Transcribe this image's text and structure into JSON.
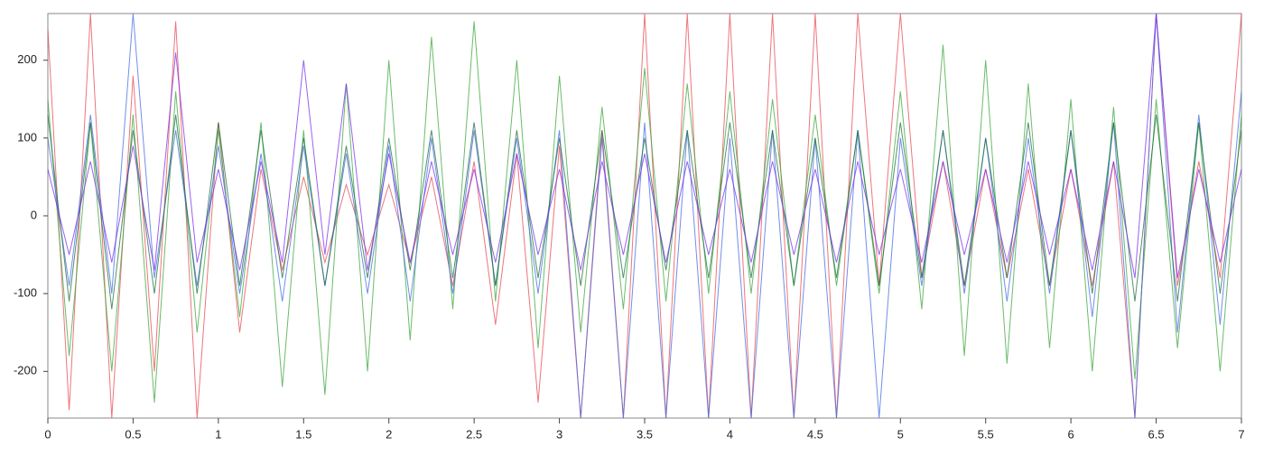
{
  "chart_data": {
    "type": "line",
    "x": [
      0,
      0.125,
      0.25,
      0.375,
      0.5,
      0.625,
      0.75,
      0.875,
      1,
      1.125,
      1.25,
      1.375,
      1.5,
      1.625,
      1.75,
      1.875,
      2,
      2.125,
      2.25,
      2.375,
      2.5,
      2.625,
      2.75,
      2.875,
      3,
      3.125,
      3.25,
      3.375,
      3.5,
      3.625,
      3.75,
      3.875,
      4,
      4.125,
      4.25,
      4.375,
      4.5,
      4.625,
      4.75,
      4.875,
      5,
      5.125,
      5.25,
      5.375,
      5.5,
      5.625,
      5.75,
      5.875,
      6,
      6.125,
      6.25,
      6.375,
      6.5,
      6.625,
      6.75,
      6.875,
      7
    ],
    "series": [
      {
        "color": "#e8474f",
        "values": [
          240,
          -250,
          260,
          -260,
          180,
          -200,
          250,
          -260,
          120,
          -150,
          60,
          -70,
          50,
          -60,
          40,
          -50,
          40,
          -60,
          50,
          -90,
          70,
          -140,
          80,
          -240,
          90,
          -260,
          110,
          -260,
          260,
          -260,
          260,
          -260,
          260,
          -260,
          260,
          -260,
          260,
          -260,
          260,
          -90,
          260,
          -80,
          70,
          -90,
          60,
          -80,
          60,
          -90,
          60,
          -90,
          70,
          -260,
          260,
          -90,
          70,
          -80,
          260
        ]
      },
      {
        "color": "#3aa53a",
        "values": [
          150,
          -180,
          120,
          -200,
          130,
          -240,
          160,
          -150,
          110,
          -130,
          120,
          -220,
          110,
          -230,
          170,
          -200,
          200,
          -160,
          230,
          -120,
          250,
          -110,
          200,
          -170,
          180,
          -150,
          140,
          -120,
          190,
          -110,
          170,
          -100,
          160,
          -100,
          150,
          -90,
          130,
          -90,
          110,
          -100,
          160,
          -120,
          220,
          -180,
          200,
          -190,
          170,
          -170,
          150,
          -200,
          140,
          -210,
          150,
          -170,
          120,
          -200,
          130
        ]
      },
      {
        "color": "#4169e1",
        "values": [
          100,
          -90,
          130,
          -100,
          260,
          -80,
          110,
          -90,
          90,
          -100,
          80,
          -110,
          90,
          -90,
          80,
          -100,
          90,
          -110,
          100,
          -100,
          110,
          -90,
          100,
          -100,
          110,
          -260,
          100,
          -260,
          120,
          -260,
          110,
          -260,
          100,
          -260,
          110,
          -260,
          100,
          -260,
          110,
          -260,
          100,
          -90,
          110,
          -100,
          100,
          -110,
          100,
          -100,
          110,
          -130,
          120,
          -260,
          260,
          -150,
          130,
          -140,
          160
        ]
      },
      {
        "color": "#1b6e3c",
        "values": [
          130,
          -110,
          120,
          -120,
          110,
          -100,
          130,
          -100,
          120,
          -90,
          110,
          -80,
          100,
          -90,
          90,
          -80,
          100,
          -70,
          110,
          -80,
          120,
          -90,
          110,
          -80,
          100,
          -90,
          110,
          -80,
          100,
          -70,
          110,
          -80,
          120,
          -80,
          110,
          -90,
          100,
          -80,
          110,
          -90,
          120,
          -80,
          110,
          -90,
          100,
          -80,
          120,
          -90,
          110,
          -100,
          120,
          -110,
          130,
          -110,
          120,
          -100,
          110
        ]
      },
      {
        "color": "#7a2cf0",
        "values": [
          60,
          -50,
          70,
          -60,
          90,
          -70,
          210,
          -60,
          60,
          -70,
          70,
          -60,
          200,
          -50,
          170,
          -70,
          80,
          -60,
          70,
          -50,
          60,
          -60,
          80,
          -50,
          60,
          -70,
          70,
          -50,
          80,
          -60,
          70,
          -50,
          60,
          -60,
          70,
          -50,
          60,
          -60,
          70,
          -50,
          60,
          -60,
          70,
          -50,
          60,
          -60,
          70,
          -50,
          60,
          -70,
          70,
          -80,
          260,
          -80,
          60,
          -60,
          60
        ]
      }
    ],
    "xlim": [
      0,
      7
    ],
    "xticks": [
      0,
      0.5,
      1,
      1.5,
      2,
      2.5,
      3,
      3.5,
      4,
      4.5,
      5,
      5.5,
      6,
      6.5,
      7
    ],
    "ylim": [
      -260,
      260
    ],
    "yticks": [
      -200,
      -100,
      0,
      100,
      200
    ]
  }
}
